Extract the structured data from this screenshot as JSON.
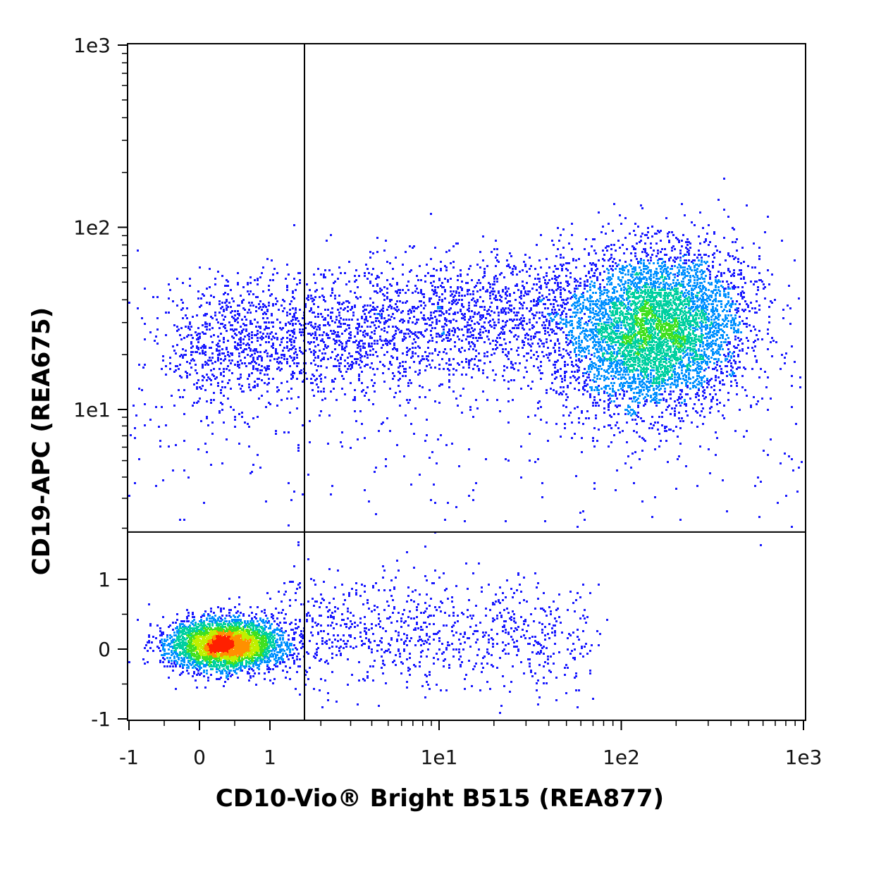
{
  "chart_data": {
    "type": "scatter",
    "title": "",
    "xlabel": "CD10-Vio® Bright B515 (REA877)",
    "ylabel": "CD19-APC (REA675)",
    "scale": "biexponential (linear near zero, log above)",
    "xlim": [
      -1,
      1000
    ],
    "ylim": [
      -1,
      1000
    ],
    "x_ticks": [
      {
        "value": -1,
        "label": "-1"
      },
      {
        "value": 0,
        "label": "0"
      },
      {
        "value": 1,
        "label": "1"
      },
      {
        "value": 10,
        "label": "1e1"
      },
      {
        "value": 100,
        "label": "1e2"
      },
      {
        "value": 1000,
        "label": "1e3"
      }
    ],
    "y_ticks": [
      {
        "value": -1,
        "label": "-1"
      },
      {
        "value": 0,
        "label": "0"
      },
      {
        "value": 1,
        "label": "1"
      },
      {
        "value": 10,
        "label": "1e1"
      },
      {
        "value": 100,
        "label": "1e2"
      },
      {
        "value": 1000,
        "label": "1e3"
      }
    ],
    "quadrant_gate": {
      "x": 1.6,
      "y": 1.9
    },
    "density_colors": [
      "#1a1aff",
      "#0090ff",
      "#00d0a0",
      "#40e020",
      "#c0f000",
      "#ff9000",
      "#ff2000"
    ],
    "populations": [
      {
        "center_x": 0.35,
        "center_y": 0.08,
        "spread": "tight",
        "peak_density": "red",
        "relative_size": 0.4
      },
      {
        "center_x": 150,
        "center_y": 28,
        "spread": "broad",
        "peak_density": "green",
        "relative_size": 0.5
      },
      {
        "center_x": 5,
        "center_y": 25,
        "spread": "diffuse bridge",
        "peak_density": "blue",
        "relative_size": 0.1
      }
    ],
    "grid": false,
    "legend": "none"
  }
}
